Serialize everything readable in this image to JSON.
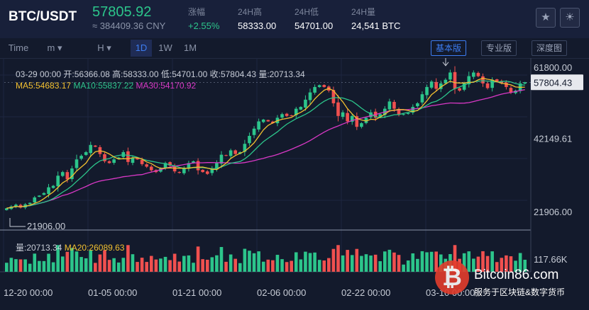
{
  "header": {
    "pair": "BTC/USDT",
    "price": "57805.92",
    "cny": "≈ 384409.36 CNY",
    "stats": [
      {
        "label": "涨幅",
        "value": "+2.55%",
        "color": "#2cc58b"
      },
      {
        "label": "24H高",
        "value": "58333.00",
        "color": "#ffffff"
      },
      {
        "label": "24H低",
        "value": "54701.00",
        "color": "#ffffff"
      },
      {
        "label": "24H量",
        "value": "24,541 BTC",
        "color": "#ffffff"
      }
    ],
    "icons": [
      "star-icon",
      "sun-icon"
    ]
  },
  "toolbar": {
    "intervals": [
      {
        "label": "Time",
        "active": false
      },
      {
        "label": "m ▾",
        "active": false
      },
      {
        "label": "H ▾",
        "active": false
      },
      {
        "label": "1D",
        "active": true
      },
      {
        "label": "1W",
        "active": false
      },
      {
        "label": "1M",
        "active": false
      }
    ],
    "views": [
      {
        "label": "基本版",
        "active": true
      },
      {
        "label": "专业版",
        "active": false
      },
      {
        "label": "深度图",
        "active": false
      }
    ]
  },
  "ohlc": {
    "date": "03-29 00:00",
    "open": "开:56366.08",
    "high": "高:58333.00",
    "low": "低:54701.00",
    "close": "收:57804.43",
    "volume": "量:20713.34"
  },
  "ma": {
    "ma5": "MA5:54683.17",
    "ma10": "MA10:55837.22",
    "ma30": "MA30:54170.92"
  },
  "volume_info": {
    "vol": "量:20713.34",
    "ma20": "MA20:26089.63"
  },
  "colors": {
    "up": "#2cc58b",
    "down": "#f0504f",
    "ma5": "#f2c030",
    "ma10": "#2cc58b",
    "ma30": "#d938c6",
    "accent": "#3d7df2"
  },
  "chart_data": {
    "type": "candlestick",
    "x_ticks": [
      "12-20 00:00",
      "01-05 00:00",
      "01-21 00:00",
      "02-06 00:00",
      "02-22 00:00",
      "03-10 00:00"
    ],
    "y_ticks": [
      "61800.00",
      "42149.61",
      "21906.00"
    ],
    "volume_ticks": [
      "117.66K"
    ],
    "ylim": [
      17000,
      64500
    ],
    "high_marker": "61800.00",
    "low_marker": "21906.00",
    "last_price_label": "57804.43",
    "closes": [
      23000,
      23500,
      24000,
      23200,
      24100,
      24500,
      26000,
      26500,
      27200,
      28800,
      29200,
      32000,
      33000,
      31000,
      34000,
      36500,
      37500,
      38500,
      40500,
      40000,
      38000,
      36000,
      35500,
      36500,
      37000,
      38500,
      35800,
      37000,
      36500,
      35200,
      34500,
      33500,
      33000,
      34000,
      35500,
      34800,
      33200,
      32800,
      34000,
      35500,
      36000,
      33500,
      33000,
      32500,
      34000,
      35500,
      37800,
      37500,
      39000,
      38000,
      38500,
      40800,
      43000,
      45000,
      47000,
      47500,
      47000,
      46500,
      48000,
      49000,
      48500,
      48500,
      50500,
      51000,
      53000,
      55000,
      56500,
      57000,
      56500,
      55500,
      52000,
      48500,
      49500,
      47000,
      48500,
      45500,
      46500,
      48000,
      49500,
      48000,
      49000,
      50500,
      52500,
      50500,
      48800,
      49000,
      49300,
      51000,
      52000,
      54500,
      56500,
      58000,
      56000,
      57500,
      58500,
      60500,
      56000,
      55500,
      57500,
      59500,
      60500,
      59500,
      57500,
      56200,
      58500,
      58000,
      57500,
      56500,
      55000,
      55500,
      57500,
      57800
    ]
  }
}
